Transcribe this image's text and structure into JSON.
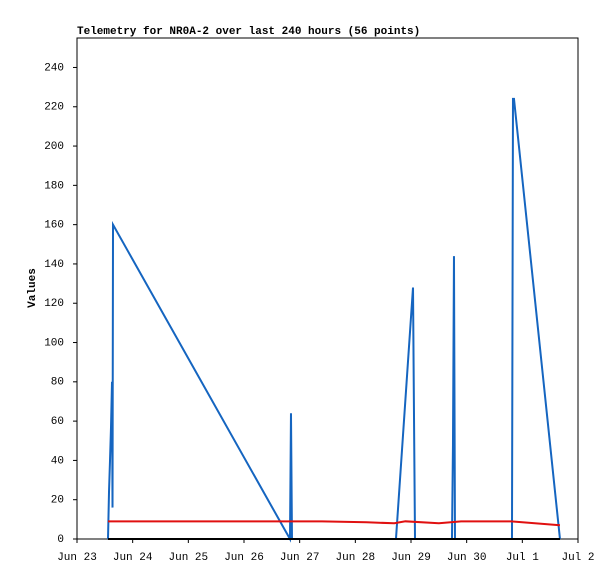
{
  "chart_data": {
    "type": "line",
    "title": "Telemetry for NR0A-2 over last 240 hours (56 points)",
    "y_label": "Values",
    "xlim": [
      0,
      9
    ],
    "xticks": [
      {
        "value": 0,
        "label": "Jun 23"
      },
      {
        "value": 1,
        "label": "Jun 24"
      },
      {
        "value": 2,
        "label": "Jun 25"
      },
      {
        "value": 3,
        "label": "Jun 26"
      },
      {
        "value": 4,
        "label": "Jun 27"
      },
      {
        "value": 5,
        "label": "Jun 28"
      },
      {
        "value": 6,
        "label": "Jun 29"
      },
      {
        "value": 7,
        "label": "Jun 30"
      },
      {
        "value": 8,
        "label": "Jul 1"
      },
      {
        "value": 9,
        "label": "Jul 2"
      }
    ],
    "ylim": [
      0,
      255
    ],
    "yticks": [
      0,
      20,
      40,
      60,
      80,
      100,
      120,
      140,
      160,
      180,
      200,
      220,
      240
    ],
    "series": [
      {
        "color": "#1565c0",
        "x": [
          0.557,
          0.575,
          0.593,
          0.611,
          0.629,
          0.638,
          0.647,
          3.826,
          3.844,
          3.853,
          3.862,
          5.73,
          6.036,
          6.054,
          6.072,
          6.736,
          6.754,
          6.772,
          6.79,
          7.814,
          7.832,
          7.85,
          8.676
        ],
        "values": [
          0,
          24,
          40,
          57,
          80,
          16,
          160,
          0,
          64,
          32,
          0,
          0,
          128,
          62,
          0,
          0,
          48,
          144,
          0,
          0,
          224,
          224,
          0
        ]
      },
      {
        "color": "#e01010",
        "x": [
          0.557,
          4.4,
          5.2,
          5.7,
          5.9,
          6.5,
          6.9,
          7.8,
          8.0,
          8.676
        ],
        "values": [
          9,
          9,
          8.5,
          8,
          9,
          8,
          9,
          9,
          8.5,
          7
        ]
      },
      {
        "color": "#000000",
        "x": [
          0.557,
          8.676
        ],
        "values": [
          0,
          0
        ]
      }
    ]
  }
}
